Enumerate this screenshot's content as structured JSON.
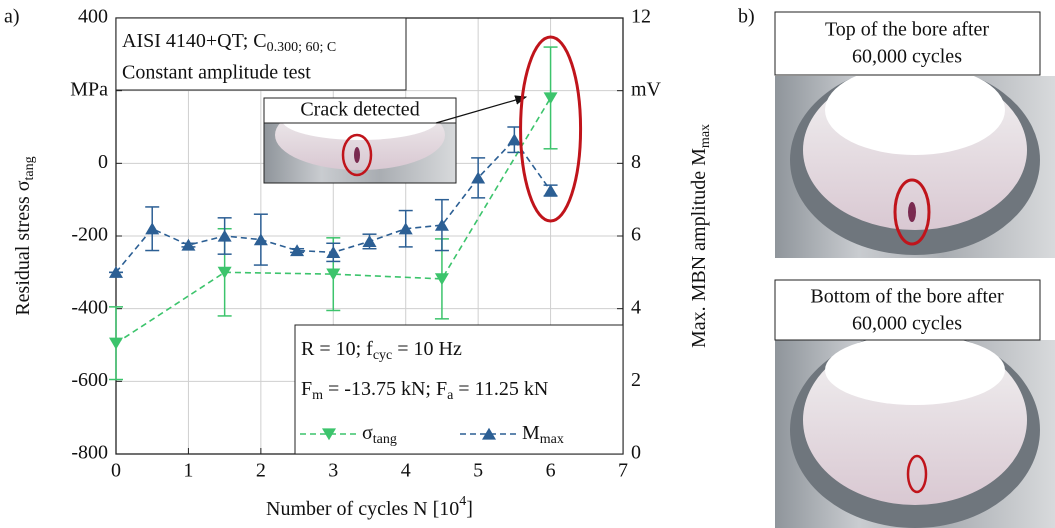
{
  "panel_a_label": "a)",
  "panel_b_label": "b)",
  "chart_data": {
    "type": "line",
    "x_label": [
      "Number of cycles N [10",
      "4",
      "]"
    ],
    "y_label": [
      "Residual stress σ",
      "tang"
    ],
    "y2_label": [
      "Max. MBN amplitude M",
      "max"
    ],
    "xlim": [
      0,
      7
    ],
    "xticks": [
      0,
      1,
      2,
      3,
      4,
      5,
      6,
      7
    ],
    "ylim": [
      -800,
      400
    ],
    "yticks": [
      -800,
      -600,
      -400,
      -200,
      0,
      {
        "value": 200,
        "label": "MPa"
      },
      400
    ],
    "y2lim": [
      0,
      12
    ],
    "y2ticks": [
      0,
      2,
      4,
      6,
      8,
      {
        "value": 10,
        "label": "mV"
      },
      12
    ],
    "grid": true,
    "series": [
      {
        "name": "σ",
        "name_subscript": "tang",
        "color": "#3cc46c",
        "marker": "down",
        "axis": "y",
        "x": [
          0,
          1.5,
          3,
          4.5,
          6
        ],
        "values": [
          -495,
          -300,
          -305,
          -318,
          180
        ],
        "errors": [
          100,
          120,
          100,
          110,
          140
        ]
      },
      {
        "name": "M",
        "name_subscript": "max",
        "color": "#2c5f94",
        "marker": "up",
        "axis": "y2",
        "x": [
          0,
          0.5,
          1,
          1.5,
          2,
          2.5,
          3,
          3.5,
          4,
          4.5,
          5,
          5.5,
          6
        ],
        "values": [
          5.0,
          6.2,
          5.75,
          6.0,
          5.9,
          5.6,
          5.55,
          5.85,
          6.2,
          6.3,
          7.6,
          8.65,
          7.25
        ],
        "errors": [
          0,
          0.6,
          0.05,
          0.5,
          0.7,
          0.05,
          0.25,
          0.2,
          0.5,
          0.7,
          0.55,
          0.35,
          0.15
        ]
      }
    ],
    "annotations": {
      "material": [
        "AISI 4140+QT; C",
        "0.300; 60; C"
      ],
      "test": "Constant amplitude test",
      "crack": "Crack detected",
      "load1": [
        "R = 10; f",
        "cyc",
        " = 10 Hz"
      ],
      "load2": [
        "F",
        "m",
        " = -13.75 kN; F",
        "a",
        " = 11.25 kN"
      ]
    }
  },
  "photos": [
    {
      "caption": [
        "Top of the bore after",
        "60,000 cycles"
      ]
    },
    {
      "caption": [
        "Bottom of the bore after",
        "60,000 cycles"
      ]
    }
  ]
}
